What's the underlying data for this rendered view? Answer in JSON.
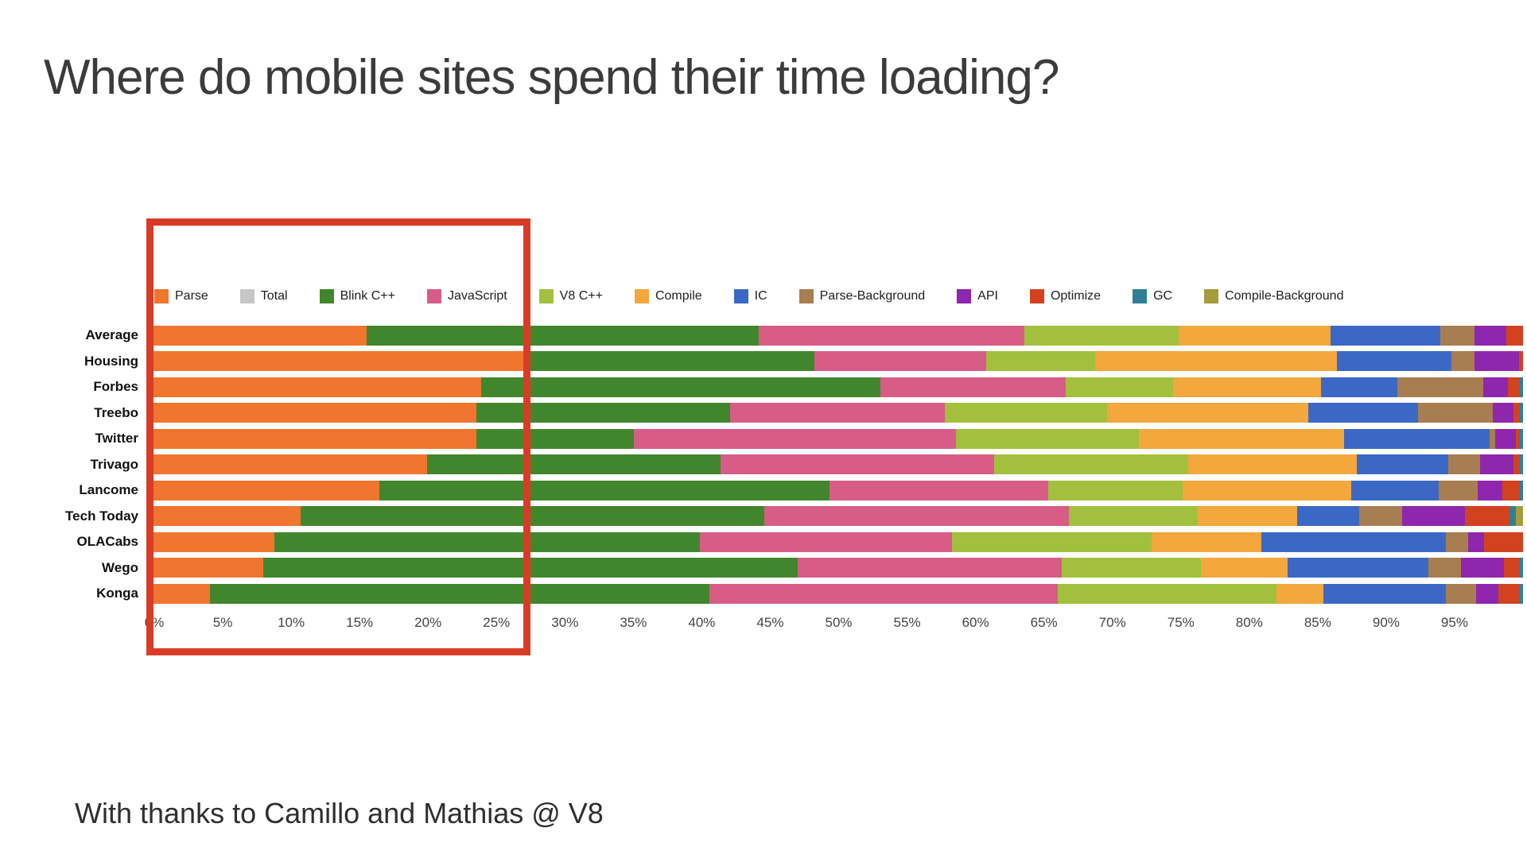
{
  "page": {
    "title": "Where do mobile sites spend their time loading?",
    "footer": "With thanks to Camillo and Mathias @ V8"
  },
  "highlight_box": {
    "color": "#d83c27",
    "region_label": "0% to 25%"
  },
  "chart_data": {
    "type": "bar",
    "orientation": "horizontal",
    "stacked": true,
    "unit": "percent",
    "xlim": [
      0,
      100
    ],
    "legend_position": "top",
    "grid": false,
    "x_ticks": [
      "0%",
      "5%",
      "10%",
      "15%",
      "20%",
      "25%",
      "30%",
      "35%",
      "40%",
      "45%",
      "50%",
      "55%",
      "60%",
      "65%",
      "70%",
      "75%",
      "80%",
      "85%",
      "90%",
      "95%"
    ],
    "categories": [
      "Average",
      "Housing",
      "Forbes",
      "Treebo",
      "Twitter",
      "Trivago",
      "Lancome",
      "Tech Today",
      "OLACabs",
      "Wego",
      "Konga"
    ],
    "series": [
      {
        "name": "Parse",
        "color": "#f0752f",
        "values": [
          16.0,
          27.5,
          24.3,
          24.0,
          24.0,
          20.4,
          16.9,
          11.2,
          9.3,
          8.5,
          4.6
        ]
      },
      {
        "name": "Total",
        "color": "#c6c6c6",
        "values": [
          0,
          0,
          0,
          0,
          0,
          0,
          0,
          0,
          0,
          0,
          0
        ]
      },
      {
        "name": "Blink C++",
        "color": "#41862c",
        "values": [
          28.5,
          21.0,
          29.0,
          18.4,
          11.4,
          21.3,
          32.7,
          33.7,
          30.9,
          38.8,
          36.3
        ]
      },
      {
        "name": "JavaScript",
        "color": "#d75d87",
        "values": [
          19.3,
          12.5,
          13.5,
          15.6,
          23.4,
          19.9,
          15.9,
          22.1,
          18.3,
          19.2,
          25.3
        ]
      },
      {
        "name": "V8 C++",
        "color": "#a2c03d",
        "values": [
          11.2,
          7.9,
          7.8,
          11.8,
          13.3,
          14.1,
          9.8,
          9.4,
          14.5,
          10.1,
          15.9
        ]
      },
      {
        "name": "Compile",
        "color": "#f3a73d",
        "values": [
          11.0,
          17.6,
          10.7,
          14.6,
          14.9,
          12.2,
          12.2,
          7.2,
          8.0,
          6.3,
          3.4
        ]
      },
      {
        "name": "IC",
        "color": "#3b68c5",
        "values": [
          8.0,
          8.3,
          5.6,
          8.0,
          10.6,
          6.7,
          6.4,
          4.5,
          13.4,
          10.2,
          8.9
        ]
      },
      {
        "name": "Parse-Background",
        "color": "#a87d52",
        "values": [
          2.5,
          1.7,
          6.2,
          5.4,
          0.4,
          2.3,
          2.8,
          3.1,
          1.6,
          2.4,
          2.2
        ]
      },
      {
        "name": "API",
        "color": "#8e27ad",
        "values": [
          2.3,
          3.2,
          1.8,
          1.5,
          1.5,
          2.4,
          1.8,
          4.6,
          1.2,
          3.1,
          1.6
        ]
      },
      {
        "name": "Optimize",
        "color": "#d2421f",
        "values": [
          1.2,
          0.3,
          0.9,
          0.5,
          0.3,
          0.5,
          1.2,
          3.2,
          2.8,
          1.2,
          1.6
        ]
      },
      {
        "name": "GC",
        "color": "#2f7f95",
        "values": [
          0.2,
          0.1,
          0.2,
          0.2,
          0.2,
          0.2,
          0.3,
          0.5,
          0.2,
          0.2,
          0.2
        ]
      },
      {
        "name": "Compile-Background",
        "color": "#a69b3d",
        "values": [
          0,
          0,
          0,
          0,
          0,
          0,
          0,
          0.5,
          0,
          0,
          0
        ]
      }
    ]
  }
}
